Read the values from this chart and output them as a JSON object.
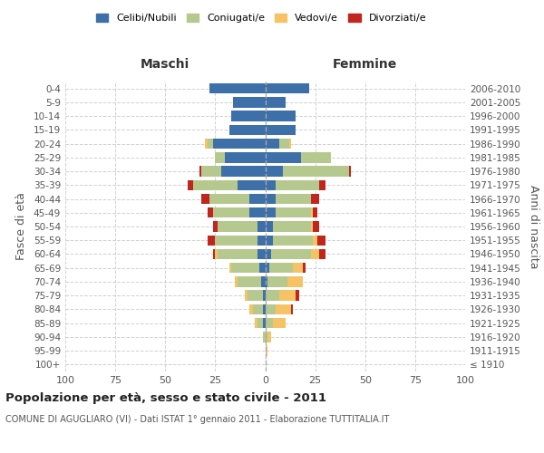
{
  "age_groups": [
    "100+",
    "95-99",
    "90-94",
    "85-89",
    "80-84",
    "75-79",
    "70-74",
    "65-69",
    "60-64",
    "55-59",
    "50-54",
    "45-49",
    "40-44",
    "35-39",
    "30-34",
    "25-29",
    "20-24",
    "15-19",
    "10-14",
    "5-9",
    "0-4"
  ],
  "birth_years": [
    "≤ 1910",
    "1911-1915",
    "1916-1920",
    "1921-1925",
    "1926-1930",
    "1931-1935",
    "1936-1940",
    "1941-1945",
    "1946-1950",
    "1951-1955",
    "1956-1960",
    "1961-1965",
    "1966-1970",
    "1971-1975",
    "1976-1980",
    "1981-1985",
    "1986-1990",
    "1991-1995",
    "1996-2000",
    "2001-2005",
    "2006-2010"
  ],
  "males": {
    "celibi": [
      0,
      0,
      0,
      1,
      1,
      1,
      2,
      3,
      4,
      4,
      4,
      8,
      8,
      14,
      22,
      20,
      26,
      18,
      17,
      16,
      28
    ],
    "coniugati": [
      0,
      0,
      1,
      3,
      5,
      8,
      12,
      14,
      20,
      21,
      20,
      18,
      20,
      22,
      10,
      5,
      3,
      0,
      0,
      0,
      0
    ],
    "vedovi": [
      0,
      0,
      0,
      1,
      2,
      1,
      1,
      1,
      1,
      0,
      0,
      0,
      0,
      0,
      0,
      0,
      1,
      0,
      0,
      0,
      0
    ],
    "divorziati": [
      0,
      0,
      0,
      0,
      0,
      0,
      0,
      0,
      1,
      4,
      2,
      3,
      4,
      3,
      1,
      0,
      0,
      0,
      0,
      0,
      0
    ]
  },
  "females": {
    "nubili": [
      0,
      0,
      0,
      0,
      0,
      0,
      1,
      2,
      3,
      4,
      4,
      5,
      5,
      5,
      9,
      18,
      7,
      15,
      15,
      10,
      22
    ],
    "coniugate": [
      0,
      0,
      1,
      4,
      5,
      7,
      10,
      12,
      20,
      20,
      19,
      18,
      18,
      22,
      33,
      15,
      5,
      0,
      0,
      0,
      0
    ],
    "vedove": [
      0,
      1,
      2,
      6,
      8,
      8,
      8,
      5,
      4,
      2,
      1,
      1,
      0,
      0,
      0,
      0,
      1,
      0,
      0,
      0,
      0
    ],
    "divorziate": [
      0,
      0,
      0,
      0,
      1,
      2,
      0,
      1,
      3,
      4,
      3,
      2,
      4,
      3,
      1,
      0,
      0,
      0,
      0,
      0,
      0
    ]
  },
  "colors": {
    "celibi": "#3d6fa8",
    "coniugati": "#b5c98e",
    "vedovi": "#f5c264",
    "divorziati": "#c0251e"
  },
  "title": "Popolazione per età, sesso e stato civile - 2011",
  "subtitle": "COMUNE DI AGUGLIARO (VI) - Dati ISTAT 1° gennaio 2011 - Elaborazione TUTTITALIA.IT",
  "xlabel_left": "Maschi",
  "xlabel_right": "Femmine",
  "ylabel_left": "Fasce di età",
  "ylabel_right": "Anni di nascita",
  "xlim": 100,
  "legend_labels": [
    "Celibi/Nubili",
    "Coniugati/e",
    "Vedovi/e",
    "Divorziati/e"
  ],
  "bg_color": "#ffffff",
  "grid_color": "#cccccc"
}
